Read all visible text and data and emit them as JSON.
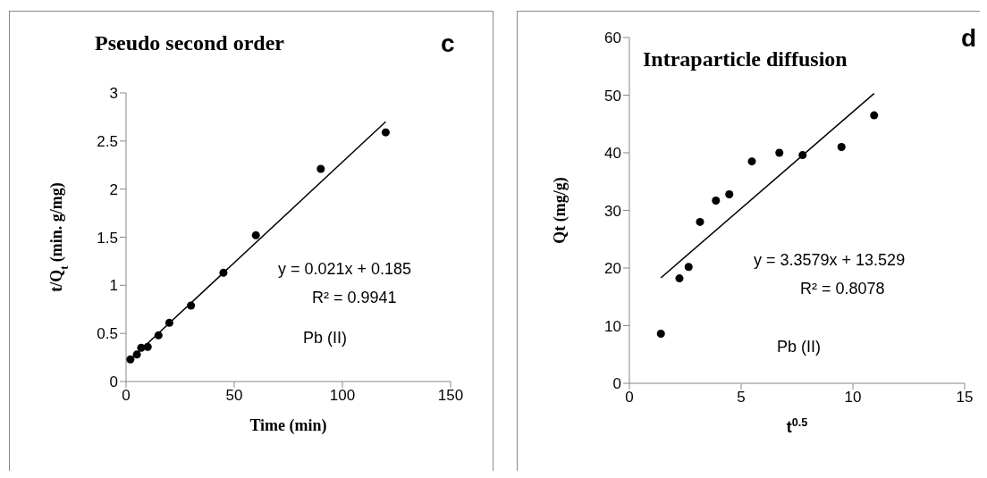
{
  "chart_data": [
    {
      "type": "scatter",
      "title": "Pseudo second order",
      "xlabel": "Time (min)",
      "ylabel": "t/Q$_{t}$ (min. g/mg)",
      "series": [
        {
          "marker": "circle",
          "color": "#000000",
          "x": [
            2,
            5,
            7,
            10,
            15,
            20,
            30,
            45,
            60,
            90,
            120
          ],
          "values": [
            0.23,
            0.28,
            0.35,
            0.36,
            0.48,
            0.61,
            0.79,
            1.13,
            1.52,
            2.21,
            2.59
          ]
        },
        {
          "type": "line",
          "marker": "none",
          "color": "#000000",
          "x": [
            2,
            120
          ],
          "values": [
            0.23,
            2.7
          ]
        }
      ],
      "xlim": [
        0,
        150
      ],
      "xticks": [
        0,
        50,
        100,
        150
      ],
      "ylim": [
        0,
        3
      ],
      "yticks": [
        0,
        0.5,
        1,
        1.5,
        2,
        2.5,
        3
      ],
      "annotations": [
        "c",
        "y = 0.021x + 0.185",
        "R² = 0.9941",
        "Pb (II)"
      ]
    },
    {
      "type": "scatter",
      "title": "Intraparticle diffusion",
      "xlabel": "t$^{0.5}$",
      "ylabel": "Qt (mg/g)",
      "series": [
        {
          "marker": "circle",
          "color": "#000000",
          "x": [
            1.41,
            2.24,
            2.65,
            3.16,
            3.87,
            4.47,
            5.48,
            6.71,
            7.75,
            9.49,
            10.95
          ],
          "values": [
            8.6,
            18.2,
            20.2,
            28,
            31.7,
            32.8,
            38.5,
            40,
            39.6,
            41,
            46.5
          ]
        },
        {
          "type": "line",
          "marker": "none",
          "color": "#000000",
          "x": [
            1.41,
            10.95
          ],
          "values": [
            18.3,
            50.3
          ]
        }
      ],
      "xlim": [
        0,
        15
      ],
      "xticks": [
        0,
        5,
        10,
        15
      ],
      "ylim": [
        0,
        60
      ],
      "yticks": [
        0,
        10,
        20,
        30,
        40,
        50,
        60
      ],
      "annotations": [
        "d",
        "y = 3.3579x + 13.529",
        "R² = 0.8078",
        "Pb (II)"
      ]
    }
  ]
}
